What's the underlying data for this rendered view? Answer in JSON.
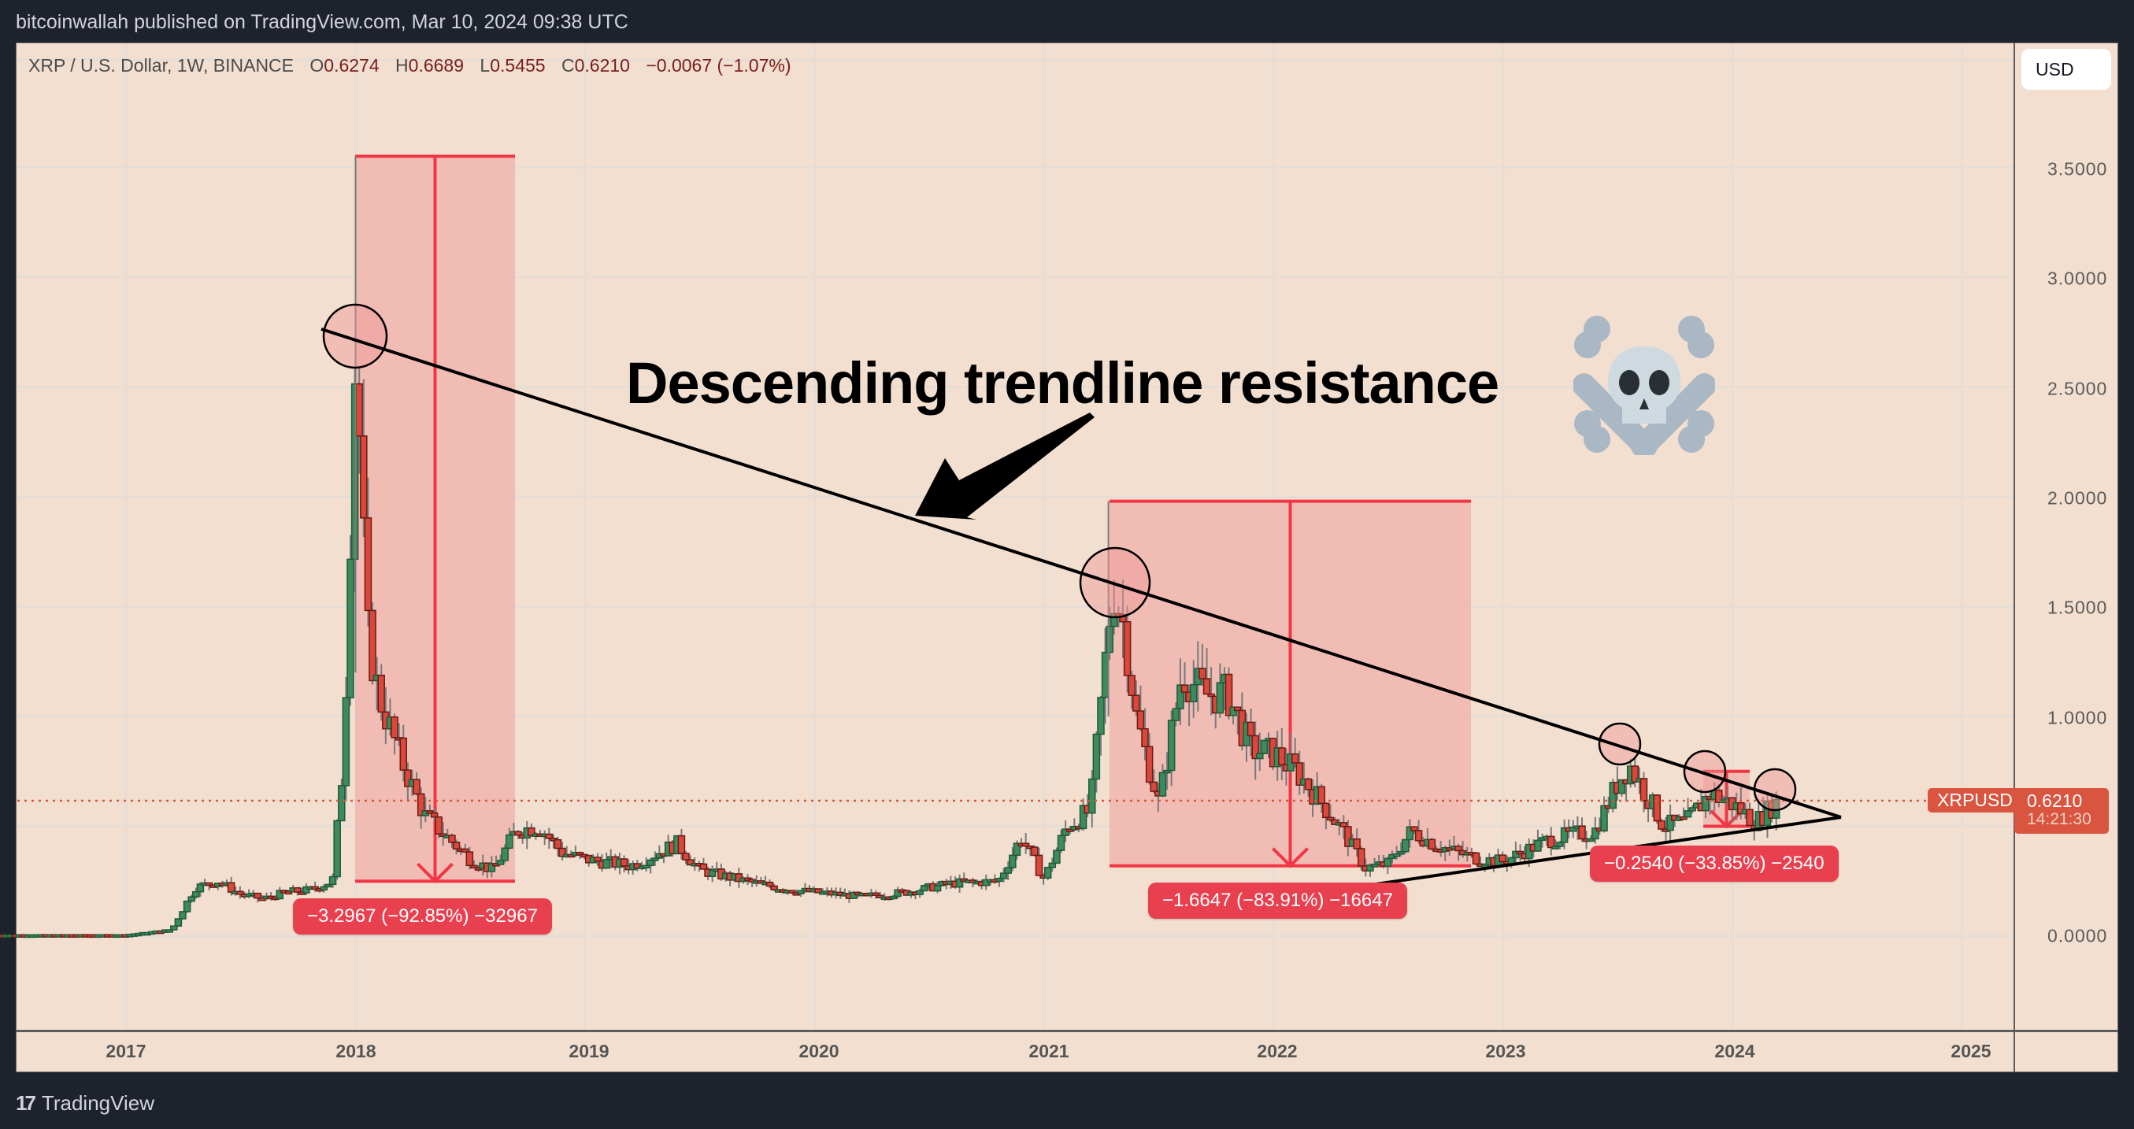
{
  "header": {
    "published": "bitcoinwallah published on TradingView.com, Mar 10, 2024 09:38 UTC"
  },
  "legend": {
    "symbol": "XRP / U.S. Dollar, 1W, BINANCE",
    "open_label": "O",
    "open": "0.6274",
    "high_label": "H",
    "high": "0.6689",
    "low_label": "L",
    "low": "0.5455",
    "close_label": "C",
    "close": "0.6210",
    "change": "−0.0067 (−1.07%)"
  },
  "price_axis": {
    "currency_button": "USD",
    "ticks": [
      "3.5000",
      "3.0000",
      "2.5000",
      "2.0000",
      "1.5000",
      "1.0000",
      "0.0000"
    ]
  },
  "time_axis": {
    "ticks": [
      "2017",
      "2018",
      "2019",
      "2020",
      "2021",
      "2022",
      "2023",
      "2024",
      "2025"
    ]
  },
  "last_price": {
    "symbol": "XRPUSD",
    "price": "0.6210",
    "countdown": "14:21:30"
  },
  "annotation": {
    "text": "Descending trendline resistance",
    "emoji": "skull-and-crossbones"
  },
  "measures": [
    {
      "label": "−3.2967 (−92.85%) −32967",
      "from": 3.55,
      "to": 0.25
    },
    {
      "label": "−1.6647 (−83.91%) −16647",
      "from": 1.98,
      "to": 0.32
    },
    {
      "label": "−0.2540 (−33.85%) −2540",
      "from": 0.75,
      "to": 0.5
    }
  ],
  "colors": {
    "background": "#f2dfcf",
    "frame": "#1e222d",
    "up": "#3d8a5c",
    "down": "#d9483b",
    "measure_fill": "#f0b8b0",
    "measure_line": "#f23645",
    "label": "#e9404f",
    "trendline": "#000000"
  },
  "footer": {
    "brand": "TradingView"
  },
  "chart_data": {
    "type": "candlestick",
    "title": "XRP / U.S. Dollar, 1W, BINANCE",
    "xlabel": "",
    "ylabel": "USD",
    "ylim": [
      -0.45,
      4.0
    ],
    "grid": true,
    "x_ticks": [
      "2017",
      "2018",
      "2019",
      "2020",
      "2021",
      "2022",
      "2023",
      "2024",
      "2025"
    ],
    "y_ticks": [
      0.0,
      0.5,
      1.0,
      1.5,
      2.0,
      2.5,
      3.0,
      3.5
    ],
    "ohlc_last": {
      "open": 0.6274,
      "high": 0.6689,
      "low": 0.5455,
      "close": 0.621,
      "change": -0.0067,
      "change_pct": -1.07
    },
    "series": [
      {
        "name": "XRPUSD weekly close (approx.)",
        "x": [
          2016.4,
          2017.0,
          2017.2,
          2017.3,
          2017.4,
          2017.5,
          2017.6,
          2017.7,
          2017.8,
          2017.9,
          2017.95,
          2018.0,
          2018.05,
          2018.1,
          2018.2,
          2018.3,
          2018.4,
          2018.5,
          2018.6,
          2018.7,
          2018.8,
          2018.9,
          2019.0,
          2019.2,
          2019.4,
          2019.5,
          2019.7,
          2019.9,
          2020.0,
          2020.2,
          2020.4,
          2020.6,
          2020.8,
          2020.9,
          2021.0,
          2021.1,
          2021.2,
          2021.3,
          2021.35,
          2021.4,
          2021.5,
          2021.6,
          2021.7,
          2021.8,
          2021.9,
          2022.0,
          2022.1,
          2022.2,
          2022.3,
          2022.4,
          2022.5,
          2022.6,
          2022.7,
          2022.8,
          2022.9,
          2023.0,
          2023.2,
          2023.4,
          2023.5,
          2023.55,
          2023.7,
          2023.8,
          2023.9,
          2024.0,
          2024.1,
          2024.2
        ],
        "close": [
          0.006,
          0.006,
          0.03,
          0.22,
          0.25,
          0.19,
          0.17,
          0.2,
          0.21,
          0.25,
          0.85,
          2.7,
          1.4,
          1.1,
          0.8,
          0.55,
          0.45,
          0.35,
          0.3,
          0.48,
          0.5,
          0.38,
          0.35,
          0.32,
          0.42,
          0.3,
          0.25,
          0.21,
          0.2,
          0.18,
          0.2,
          0.24,
          0.25,
          0.45,
          0.26,
          0.5,
          0.57,
          1.6,
          1.4,
          1.0,
          0.6,
          1.2,
          1.1,
          1.1,
          0.85,
          0.83,
          0.75,
          0.62,
          0.48,
          0.31,
          0.33,
          0.48,
          0.42,
          0.38,
          0.35,
          0.34,
          0.44,
          0.48,
          0.7,
          0.78,
          0.5,
          0.52,
          0.65,
          0.6,
          0.52,
          0.62
        ]
      }
    ],
    "annotations": [
      {
        "type": "trendline",
        "name": "descending resistance",
        "from": [
          2017.95,
          2.78
        ],
        "to": [
          2024.47,
          0.56
        ]
      },
      {
        "type": "trendline",
        "name": "ascending support",
        "from": [
          2022.3,
          0.22
        ],
        "to": [
          2024.47,
          0.56
        ]
      },
      {
        "type": "text",
        "text": "Descending trendline resistance"
      },
      {
        "type": "price_range",
        "label": "-3.2967 (-92.85%) -32967"
      },
      {
        "type": "price_range",
        "label": "-1.6647 (-83.91%) -16647"
      },
      {
        "type": "price_range",
        "label": "-0.2540 (-33.85%) -2540"
      },
      {
        "type": "circles",
        "at": [
          "2018-01 peak",
          "2021-04 peak",
          "2023-07 high",
          "2023-11 high",
          "2024-03 current"
        ]
      }
    ]
  }
}
